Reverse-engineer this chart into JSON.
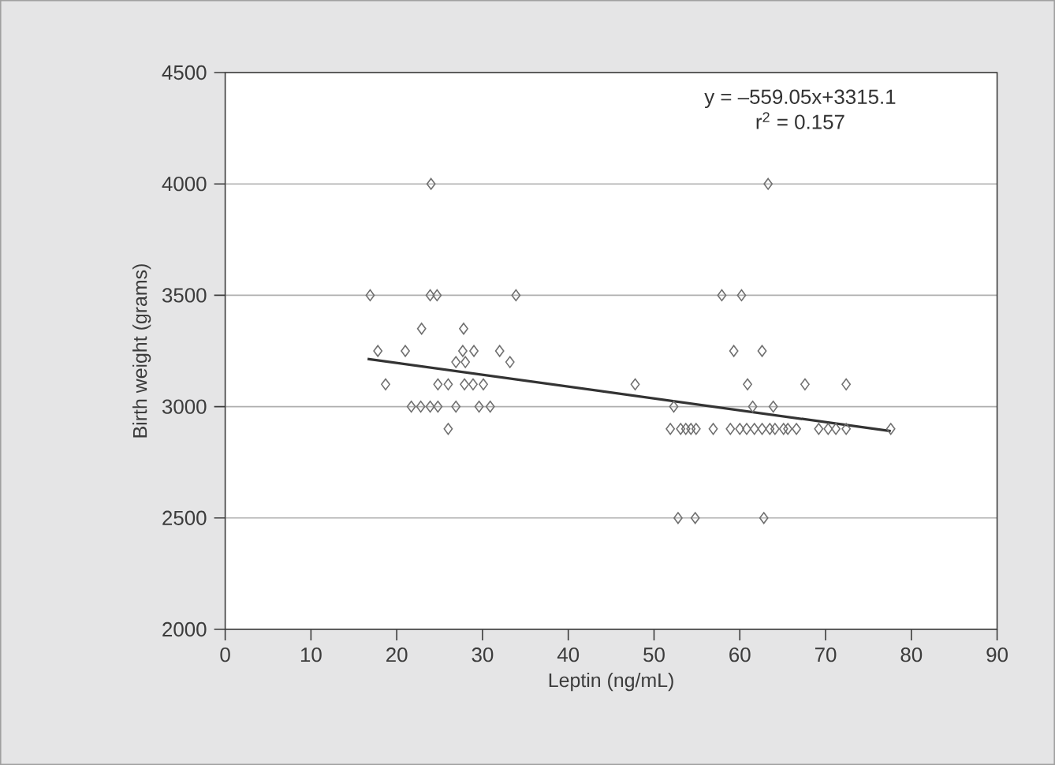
{
  "chart_data": {
    "type": "scatter",
    "xlabel": "Leptin (ng/mL)",
    "ylabel": "Birth weight (grams)",
    "xlim": [
      0,
      90
    ],
    "xticks": [
      0,
      10,
      20,
      30,
      40,
      50,
      60,
      70,
      80,
      90
    ],
    "ylim": [
      2000,
      4500
    ],
    "yticks": [
      2000,
      2500,
      3000,
      3500,
      4000,
      4500
    ],
    "grid": "y",
    "marker": "diamond",
    "annotations": [
      "y = –559.05x+3315.1",
      "r$^{2}$ = 0.157"
    ],
    "series": [
      {
        "color": "#707070",
        "x": [
          24.0,
          16.9,
          23.9,
          24.7,
          33.9,
          22.9,
          27.8,
          17.8,
          21.0,
          27.7,
          29.0,
          32.0,
          26.9,
          28.0,
          33.2,
          18.7,
          24.8,
          26.0,
          27.9,
          28.9,
          30.1,
          21.7,
          22.8,
          23.9,
          24.8,
          26.9,
          29.6,
          30.9,
          26.0,
          47.8,
          63.3,
          57.9,
          60.2,
          59.3,
          62.6,
          60.9,
          67.6,
          72.4,
          52.3,
          61.5,
          63.9,
          51.9,
          53.1,
          53.7,
          54.3,
          54.9,
          56.9,
          58.9,
          60.0,
          60.8,
          61.7,
          62.6,
          63.5,
          64.1,
          65.1,
          65.6,
          66.6,
          69.2,
          70.3,
          71.2,
          72.4,
          77.6,
          52.8,
          54.8,
          62.8
        ],
        "values": [
          4000,
          3500,
          3500,
          3500,
          3500,
          3350,
          3350,
          3250,
          3250,
          3250,
          3250,
          3250,
          3200,
          3200,
          3200,
          3100,
          3100,
          3100,
          3100,
          3100,
          3100,
          3000,
          3000,
          3000,
          3000,
          3000,
          3000,
          3000,
          2900,
          3100,
          4000,
          3500,
          3500,
          3250,
          3250,
          3100,
          3100,
          3100,
          3000,
          3000,
          3000,
          2900,
          2900,
          2900,
          2900,
          2900,
          2900,
          2900,
          2900,
          2900,
          2900,
          2900,
          2900,
          2900,
          2900,
          2900,
          2900,
          2900,
          2900,
          2900,
          2900,
          2900,
          2500,
          2500,
          2500
        ]
      },
      {
        "type": "line",
        "color": "#333333",
        "marker": "none",
        "line_style": "solid",
        "x": [
          16.6,
          77.6
        ],
        "values": [
          3214,
          2890
        ]
      }
    ]
  }
}
